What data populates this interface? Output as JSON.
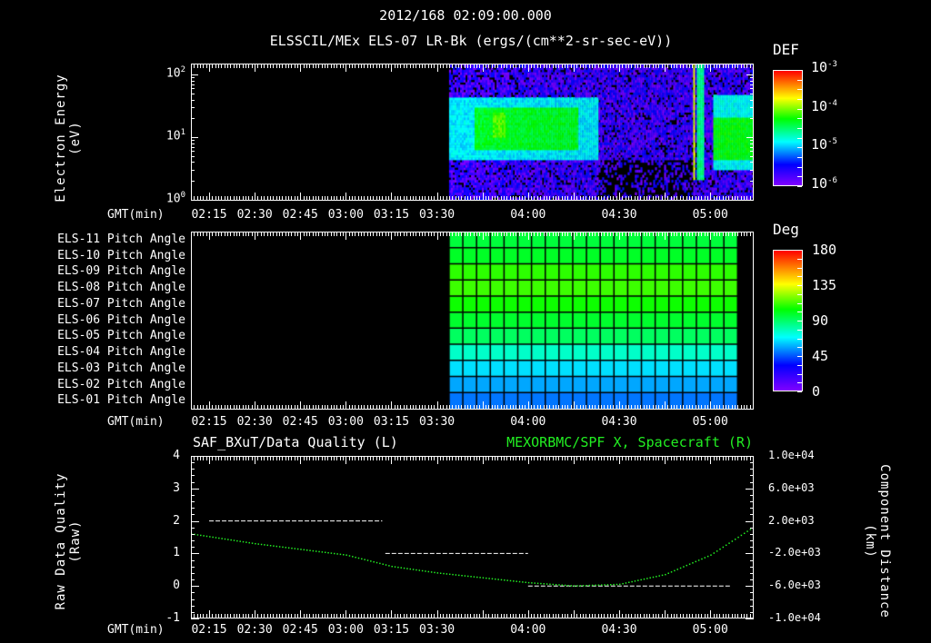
{
  "header": {
    "datetime": "2012/168 02:09:00.000",
    "subtitle": "ELSSCIL/MEx ELS-07 LR-Bk  (ergs/(cm**2-sr-sec-eV))"
  },
  "time_axis": {
    "label": "GMT(min)",
    "start_min": 129,
    "end_min": 314,
    "ticks": [
      {
        "label": "02:15",
        "min": 135
      },
      {
        "label": "02:30",
        "min": 150
      },
      {
        "label": "02:45",
        "min": 165
      },
      {
        "label": "03:00",
        "min": 180
      },
      {
        "label": "03:15",
        "min": 195
      },
      {
        "label": "03:30",
        "min": 210
      },
      {
        "label": "04:00",
        "min": 240
      },
      {
        "label": "04:30",
        "min": 270
      },
      {
        "label": "05:00",
        "min": 300
      }
    ]
  },
  "chart_data": [
    {
      "type": "heatmap",
      "title": "ELSSCIL/MEx ELS-07 LR-Bk",
      "ylabel": "Electron Energy (eV)",
      "yscale": "log",
      "ylim": [
        1,
        150
      ],
      "yticks": [
        {
          "base": "10",
          "exp": "0",
          "value": 1
        },
        {
          "base": "10",
          "exp": "1",
          "value": 10
        },
        {
          "base": "10",
          "exp": "2",
          "value": 100
        }
      ],
      "colorbar": {
        "label": "DEF",
        "log_range": [
          -6,
          -3
        ],
        "ticks": [
          {
            "base": "10",
            "exp": "-3"
          },
          {
            "base": "10",
            "exp": "-4"
          },
          {
            "base": "10",
            "exp": "-5"
          },
          {
            "base": "10",
            "exp": "-6"
          }
        ]
      },
      "data_time_range_min": [
        214,
        314
      ],
      "background_log_def": -5.7,
      "bands": [
        {
          "t": [
            214,
            263
          ],
          "e": [
            4,
            40
          ],
          "log_def": -4.9
        },
        {
          "t": [
            222,
            256
          ],
          "e": [
            6,
            28
          ],
          "log_def": -4.35
        },
        {
          "t": [
            228,
            232
          ],
          "e": [
            10,
            25
          ],
          "log_def": -4.1
        },
        {
          "t": [
            294,
            294.7
          ],
          "e": [
            2,
            150
          ],
          "log_def": -3.8
        },
        {
          "t": [
            295.5,
            298
          ],
          "e": [
            2,
            150
          ],
          "log_def": -4.6
        },
        {
          "t": [
            301,
            314
          ],
          "e": [
            3,
            45
          ],
          "log_def": -4.85
        },
        {
          "t": [
            301,
            314
          ],
          "e": [
            4,
            20
          ],
          "log_def": -4.3
        }
      ],
      "sparse_low_energy": {
        "t": [
          263,
          294
        ],
        "e": [
          1,
          4
        ]
      }
    },
    {
      "type": "heatmap",
      "title": "Pitch Angle",
      "rows": [
        {
          "label": "ELS-11 Pitch Angle",
          "deg": 96
        },
        {
          "label": "ELS-10 Pitch Angle",
          "deg": 99
        },
        {
          "label": "ELS-09 Pitch Angle",
          "deg": 110
        },
        {
          "label": "ELS-08 Pitch Angle",
          "deg": 112
        },
        {
          "label": "ELS-07 Pitch Angle",
          "deg": 106
        },
        {
          "label": "ELS-06 Pitch Angle",
          "deg": 98
        },
        {
          "label": "ELS-05 Pitch Angle",
          "deg": 91
        },
        {
          "label": "ELS-04 Pitch Angle",
          "deg": 76
        },
        {
          "label": "ELS-03 Pitch Angle",
          "deg": 64
        },
        {
          "label": "ELS-02 Pitch Angle",
          "deg": 56
        },
        {
          "label": "ELS-01 Pitch Angle",
          "deg": 49
        }
      ],
      "data_time_range_min": [
        214,
        309
      ],
      "columns": 21,
      "colorbar": {
        "label": "Deg",
        "range": [
          0,
          180
        ],
        "ticks": [
          "180",
          "135",
          "90",
          "45",
          "0"
        ]
      }
    },
    {
      "type": "line",
      "title_left": "SAF_BXuT/Data Quality (L)",
      "title_right": "MEXORBMC/SPF X, Spacecraft (R)",
      "ylabel_left": "Raw Data Quality (Raw)",
      "ylabel_right": "Component Distance (km)",
      "ylim_left": [
        -1,
        4
      ],
      "yticks_left": [
        "4",
        "3",
        "2",
        "1",
        "0",
        "-1"
      ],
      "ylim_right": [
        -10000,
        10000
      ],
      "yticks_right": [
        "1.0e+04",
        "6.0e+03",
        "2.0e+03",
        "-2.0e+03",
        "-6.0e+03",
        "-1.0e+04"
      ],
      "series": [
        {
          "name": "Data Quality",
          "axis": "left",
          "color": "#ffffff",
          "style": "dashed-steps",
          "segments": [
            {
              "t": [
                135,
                192
              ],
              "value": 2
            },
            {
              "t": [
                193,
                240
              ],
              "value": 1
            },
            {
              "t": [
                240,
                307
              ],
              "value": 0
            }
          ]
        },
        {
          "name": "Spacecraft X",
          "axis": "right",
          "color": "#22ee22",
          "style": "dotted",
          "x_min": [
            129,
            150,
            180,
            195,
            210,
            240,
            255,
            270,
            285,
            300,
            314
          ],
          "y_km": [
            400,
            -800,
            -2200,
            -3600,
            -4400,
            -5600,
            -6000,
            -5800,
            -4600,
            -2200,
            1200
          ]
        }
      ]
    }
  ]
}
